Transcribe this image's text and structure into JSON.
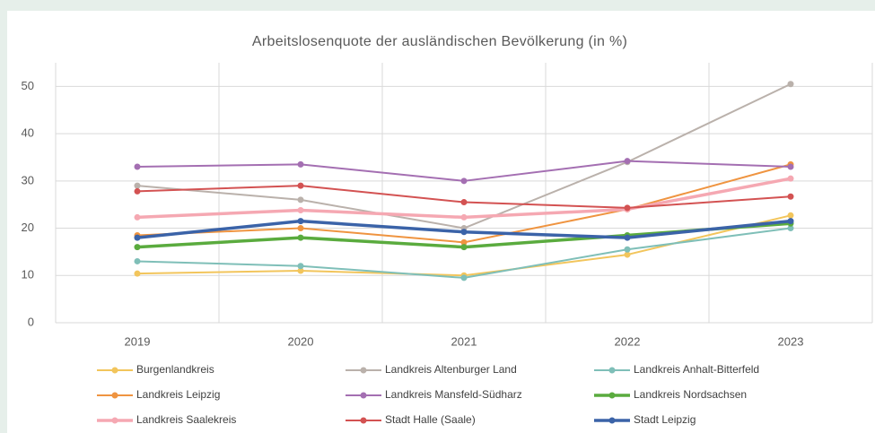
{
  "chart_data": {
    "type": "line",
    "title": "Arbeitslosenquote der ausländischen Bevölkerung (in %)",
    "categories": [
      "2019",
      "2020",
      "2021",
      "2022",
      "2023"
    ],
    "ylim": [
      0,
      55
    ],
    "yticks": [
      0,
      10,
      20,
      30,
      40,
      50
    ],
    "grid": true,
    "legend": "bottom",
    "series": [
      {
        "name": "Burgenlandkreis",
        "color": "#f2c55c",
        "line_width": 2,
        "values": [
          10.4,
          11,
          10,
          14.4,
          22.7
        ]
      },
      {
        "name": "Landkreis Altenburger Land",
        "color": "#bab1ab",
        "line_width": 2,
        "values": [
          29,
          26,
          20,
          34,
          50.5
        ]
      },
      {
        "name": "Landkreis Anhalt-Bitterfeld",
        "color": "#7fbfb8",
        "line_width": 2,
        "values": [
          13,
          12,
          9.5,
          15.5,
          20
        ]
      },
      {
        "name": "Landkreis Leipzig",
        "color": "#ef9440",
        "line_width": 2,
        "values": [
          18.5,
          20,
          17,
          24,
          33.5
        ]
      },
      {
        "name": "Landkreis Mansfeld-Südharz",
        "color": "#a46fb2",
        "line_width": 2,
        "values": [
          33,
          33.5,
          30,
          34.2,
          33
        ]
      },
      {
        "name": "Landkreis Nordsachsen",
        "color": "#5aab3e",
        "line_width": 3.5,
        "values": [
          16,
          18,
          16,
          18.5,
          21
        ]
      },
      {
        "name": "Landkreis Saalekreis",
        "color": "#f5a8b2",
        "line_width": 3.5,
        "values": [
          22.3,
          23.8,
          22.3,
          24,
          30.5
        ]
      },
      {
        "name": "Stadt Halle (Saale)",
        "color": "#d35252",
        "line_width": 2,
        "values": [
          27.8,
          29,
          25.5,
          24.3,
          26.7
        ]
      },
      {
        "name": "Stadt Leipzig",
        "color": "#3b63a8",
        "line_width": 3.5,
        "values": [
          18,
          21.5,
          19.2,
          18,
          21.5
        ]
      }
    ]
  }
}
